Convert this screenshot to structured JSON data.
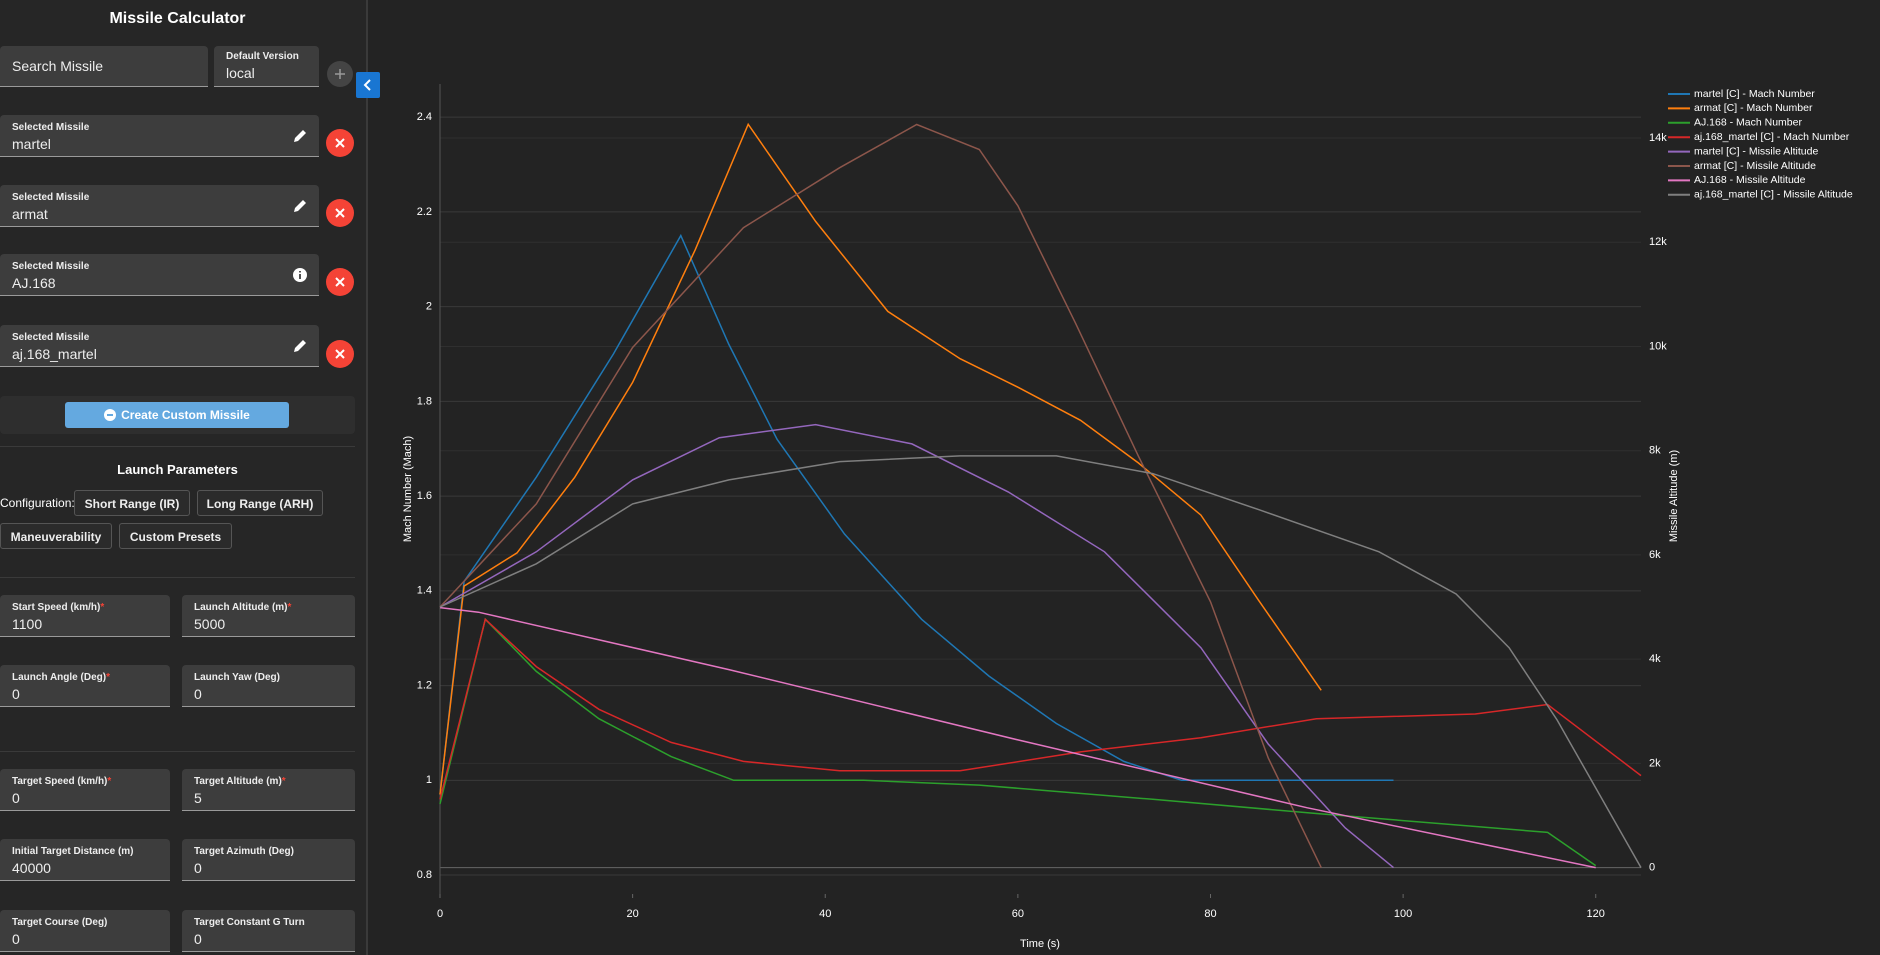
{
  "sidebar": {
    "title": "Missile Calculator",
    "search_placeholder": "Search Missile",
    "version": {
      "label": "Default Version",
      "value": "local"
    },
    "selected_missiles": [
      {
        "label": "Selected Missile",
        "value": "martel"
      },
      {
        "label": "Selected Missile",
        "value": "armat"
      },
      {
        "label": "Selected Missile",
        "value": "AJ.168"
      },
      {
        "label": "Selected Missile",
        "value": "aj.168_martel"
      }
    ],
    "create_button": "Create Custom Missile",
    "section_title": "Launch Parameters",
    "configuration_label": "Configuration:",
    "presets": [
      "Short Range (IR)",
      "Long Range (ARH)",
      "Maneuverability",
      "Custom Presets"
    ],
    "required_mark": "*",
    "fields": [
      {
        "label": "Start Speed (km/h)",
        "value": 1100,
        "required": true
      },
      {
        "label": "Launch Altitude (m)",
        "value": 5000,
        "required": true
      },
      {
        "label": "Launch Angle (Deg)",
        "value": 0,
        "required": true
      },
      {
        "label": "Launch Yaw (Deg)",
        "value": 0,
        "required": false
      },
      {
        "label": "Target Speed (km/h)",
        "value": 0,
        "required": true
      },
      {
        "label": "Target Altitude (m)",
        "value": 5,
        "required": true
      },
      {
        "label": "Initial Target Distance (m)",
        "value": 40000,
        "required": false
      },
      {
        "label": "Target Azimuth (Deg)",
        "value": 0,
        "required": false
      },
      {
        "label": "Target Course (Deg)",
        "value": 0,
        "required": false
      },
      {
        "label": "Target Constant G Turn",
        "value": 0,
        "required": false
      }
    ]
  },
  "chart_data": {
    "type": "line",
    "x_label": "Time (s)",
    "y_label": "Mach Number (Mach)",
    "y2_label": "Missile Altitude (m)",
    "xlim": [
      0,
      124.7
    ],
    "xticks": [
      0,
      20,
      40,
      60,
      80,
      100,
      120
    ],
    "ylim": [
      0.76,
      2.47
    ],
    "yticks": [
      0.8,
      1,
      1.2,
      1.4,
      1.6,
      1.8,
      2,
      2.2,
      2.4
    ],
    "y2lim": [
      -507,
      15037
    ],
    "y2ticks": [
      0,
      {
        "value": 2000,
        "label": "2k"
      },
      {
        "value": 4000,
        "label": "4k"
      },
      {
        "value": 6000,
        "label": "6k"
      },
      {
        "value": 8000,
        "label": "8k"
      },
      {
        "value": 10000,
        "label": "10k"
      },
      {
        "value": 12000,
        "label": "12k"
      },
      {
        "value": 14000,
        "label": "14k"
      }
    ],
    "grid": true,
    "legend_position": "outside-top-right",
    "series": [
      {
        "name": "martel [C] - Mach Number",
        "color": "#1f77b4",
        "x": [
          0,
          2.5,
          10,
          18,
          25,
          30,
          35,
          42,
          50,
          57,
          64,
          71,
          77,
          99
        ],
        "values": [
          0.97,
          1.42,
          1.64,
          1.9,
          2.15,
          1.92,
          1.72,
          1.52,
          1.34,
          1.22,
          1.12,
          1.04,
          1.0,
          1.0
        ]
      },
      {
        "name": "armat [C] - Mach Number",
        "color": "#ff7f0e",
        "x": [
          0,
          2.5,
          8,
          14,
          20,
          26.5,
          32,
          39,
          46.5,
          54,
          60,
          66.5,
          72.5,
          79,
          85,
          91.5
        ],
        "values": [
          0.97,
          1.41,
          1.48,
          1.64,
          1.84,
          2.12,
          2.385,
          2.18,
          1.99,
          1.89,
          1.83,
          1.76,
          1.67,
          1.56,
          1.38,
          1.19
        ]
      },
      {
        "name": "AJ.168 - Mach Number",
        "color": "#2ca02c",
        "x": [
          0,
          4.7,
          10,
          16.5,
          24,
          30.5,
          44,
          56,
          74,
          91,
          115,
          120
        ],
        "values": [
          0.95,
          1.34,
          1.23,
          1.13,
          1.05,
          1.0,
          1.0,
          0.99,
          0.96,
          0.93,
          0.89,
          0.82
        ]
      },
      {
        "name": "aj.168_martel [C] - Mach Number",
        "color": "#d62728",
        "x": [
          0,
          4.7,
          10,
          16.5,
          24,
          31.5,
          41.5,
          54,
          66.5,
          79,
          91,
          107.5,
          115,
          124.7
        ],
        "values": [
          0.96,
          1.34,
          1.24,
          1.15,
          1.08,
          1.04,
          1.02,
          1.02,
          1.06,
          1.09,
          1.13,
          1.14,
          1.16,
          1.01
        ]
      },
      {
        "name": "martel [C] - Missile Altitude",
        "color": "#9467bd",
        "axis": "y2",
        "x": [
          0,
          10,
          20,
          29,
          39,
          49,
          59,
          69,
          79,
          86,
          94,
          99
        ],
        "values": [
          5000,
          6060,
          7440,
          8250,
          8500,
          8130,
          7210,
          6060,
          4220,
          2370,
          760,
          0
        ]
      },
      {
        "name": "armat [C] - Missile Altitude",
        "color": "#8c564b",
        "axis": "y2",
        "x": [
          0,
          10,
          20,
          31.5,
          41.5,
          49.5,
          56,
          60,
          66,
          72.5,
          80,
          86,
          91.5
        ],
        "values": [
          5000,
          6980,
          9980,
          12280,
          13430,
          14260,
          13780,
          12700,
          10440,
          7900,
          5100,
          2100,
          0
        ]
      },
      {
        "name": "AJ.168 - Missile Altitude",
        "color": "#e377c2",
        "axis": "y2",
        "x": [
          0,
          4,
          30,
          60,
          90,
          120
        ],
        "values": [
          4990,
          4900,
          3800,
          2450,
          1150,
          0
        ]
      },
      {
        "name": "aj.168_martel [C] - Missile Altitude",
        "color": "#7f7f7f",
        "axis": "y2",
        "x": [
          0,
          10,
          20,
          30,
          41.5,
          54,
          64,
          74,
          85,
          97.5,
          105.5,
          111,
          116,
          124.7
        ],
        "values": [
          5000,
          5830,
          6980,
          7440,
          7790,
          7900,
          7900,
          7560,
          6870,
          6060,
          5250,
          4220,
          2830,
          0
        ]
      }
    ]
  }
}
